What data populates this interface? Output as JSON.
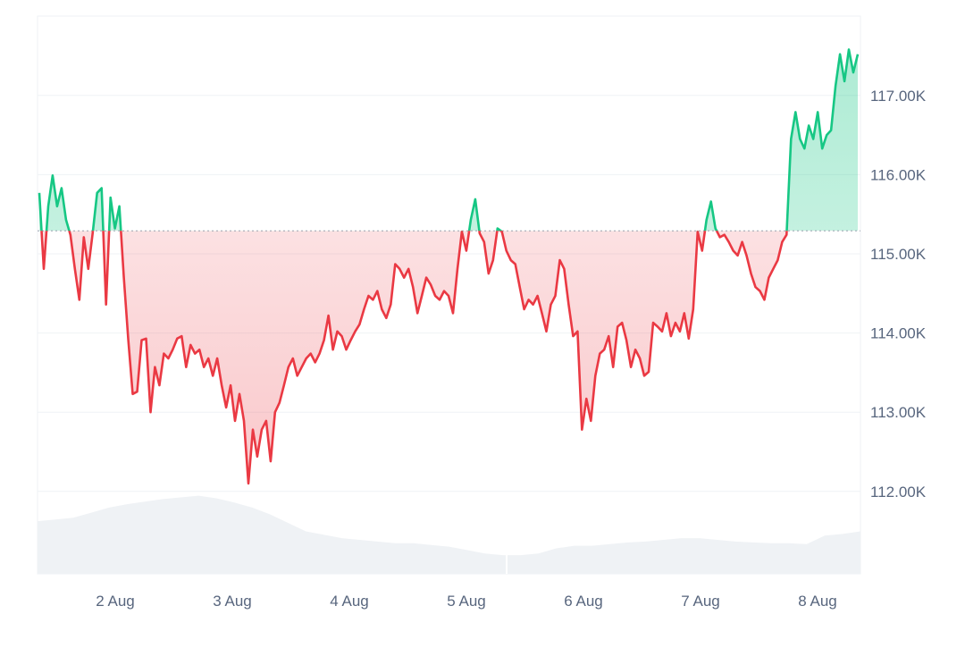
{
  "chart_data": {
    "type": "line",
    "title": "",
    "xlabel": "",
    "ylabel": "",
    "ylim": [
      111.0,
      118.0
    ],
    "y_ticks": [
      {
        "value": 117,
        "label": "117.00K"
      },
      {
        "value": 116,
        "label": "116.00K"
      },
      {
        "value": 115,
        "label": "115.00K"
      },
      {
        "value": 114,
        "label": "114.00K"
      },
      {
        "value": 113,
        "label": "113.00K"
      },
      {
        "value": 112,
        "label": "112.00K"
      }
    ],
    "x_range_days": [
      1.66,
      8.37
    ],
    "x_ticks": [
      {
        "value": 2,
        "label": "2 Aug"
      },
      {
        "value": 3,
        "label": "3 Aug"
      },
      {
        "value": 4,
        "label": "4 Aug"
      },
      {
        "value": 5,
        "label": "5 Aug"
      },
      {
        "value": 6,
        "label": "6 Aug"
      },
      {
        "value": 7,
        "label": "7 Aug"
      },
      {
        "value": 8,
        "label": "8 Aug"
      }
    ],
    "grid": true,
    "baseline": 115.29,
    "colors": {
      "up": "#16c784",
      "down": "#ea3943",
      "volume": "#eff2f5",
      "grid": "#eff2f5",
      "axis_text": "#58667e"
    },
    "series": [
      {
        "name": "Price (K)",
        "values": [
          115.77,
          114.81,
          115.6,
          115.99,
          115.6,
          115.83,
          115.43,
          115.24,
          114.81,
          114.42,
          115.21,
          114.81,
          115.26,
          115.77,
          115.83,
          114.36,
          115.71,
          115.32,
          115.6,
          114.7,
          113.91,
          113.23,
          113.26,
          113.91,
          113.93,
          113.0,
          113.57,
          113.34,
          113.74,
          113.68,
          113.79,
          113.93,
          113.96,
          113.57,
          113.85,
          113.74,
          113.79,
          113.57,
          113.68,
          113.46,
          113.68,
          113.34,
          113.06,
          113.34,
          112.89,
          113.23,
          112.89,
          112.1,
          112.78,
          112.44,
          112.78,
          112.89,
          112.38,
          113.0,
          113.12,
          113.34,
          113.57,
          113.68,
          113.46,
          113.57,
          113.68,
          113.74,
          113.63,
          113.74,
          113.91,
          114.22,
          113.79,
          114.02,
          113.96,
          113.79,
          113.91,
          114.02,
          114.11,
          114.3,
          114.47,
          114.42,
          114.53,
          114.3,
          114.19,
          114.36,
          114.87,
          114.81,
          114.7,
          114.81,
          114.58,
          114.25,
          114.47,
          114.7,
          114.61,
          114.47,
          114.42,
          114.53,
          114.47,
          114.25,
          114.81,
          115.28,
          115.04,
          115.43,
          115.69,
          115.26,
          115.15,
          114.75,
          114.92,
          115.32,
          115.28,
          115.04,
          114.92,
          114.87,
          114.58,
          114.3,
          114.42,
          114.36,
          114.47,
          114.25,
          114.02,
          114.36,
          114.47,
          114.92,
          114.81,
          114.36,
          113.96,
          114.02,
          112.78,
          113.17,
          112.89,
          113.46,
          113.74,
          113.79,
          113.96,
          113.57,
          114.08,
          114.13,
          113.91,
          113.57,
          113.79,
          113.68,
          113.46,
          113.51,
          114.13,
          114.08,
          114.02,
          114.25,
          113.96,
          114.13,
          114.02,
          114.25,
          113.93,
          114.3,
          115.28,
          115.04,
          115.43,
          115.66,
          115.32,
          115.21,
          115.24,
          115.15,
          115.04,
          114.98,
          115.15,
          114.98,
          114.75,
          114.58,
          114.53,
          114.42,
          114.7,
          114.81,
          114.92,
          115.15,
          115.24,
          116.45,
          116.79,
          116.45,
          116.33,
          116.62,
          116.45,
          116.79,
          116.33,
          116.5,
          116.56,
          117.12,
          117.52,
          117.18,
          117.58,
          117.29,
          117.52
        ]
      },
      {
        "name": "Volume (relative)",
        "values": [
          0.62,
          0.64,
          0.66,
          0.72,
          0.78,
          0.82,
          0.85,
          0.88,
          0.9,
          0.92,
          0.89,
          0.84,
          0.78,
          0.7,
          0.6,
          0.5,
          0.46,
          0.42,
          0.4,
          0.38,
          0.36,
          0.36,
          0.34,
          0.32,
          0.28,
          0.24,
          0.22,
          0.22,
          0.24,
          0.3,
          0.33,
          0.33,
          0.35,
          0.37,
          0.38,
          0.4,
          0.42,
          0.42,
          0.4,
          0.38,
          0.37,
          0.36,
          0.36,
          0.35,
          0.45,
          0.47,
          0.5
        ]
      }
    ]
  }
}
